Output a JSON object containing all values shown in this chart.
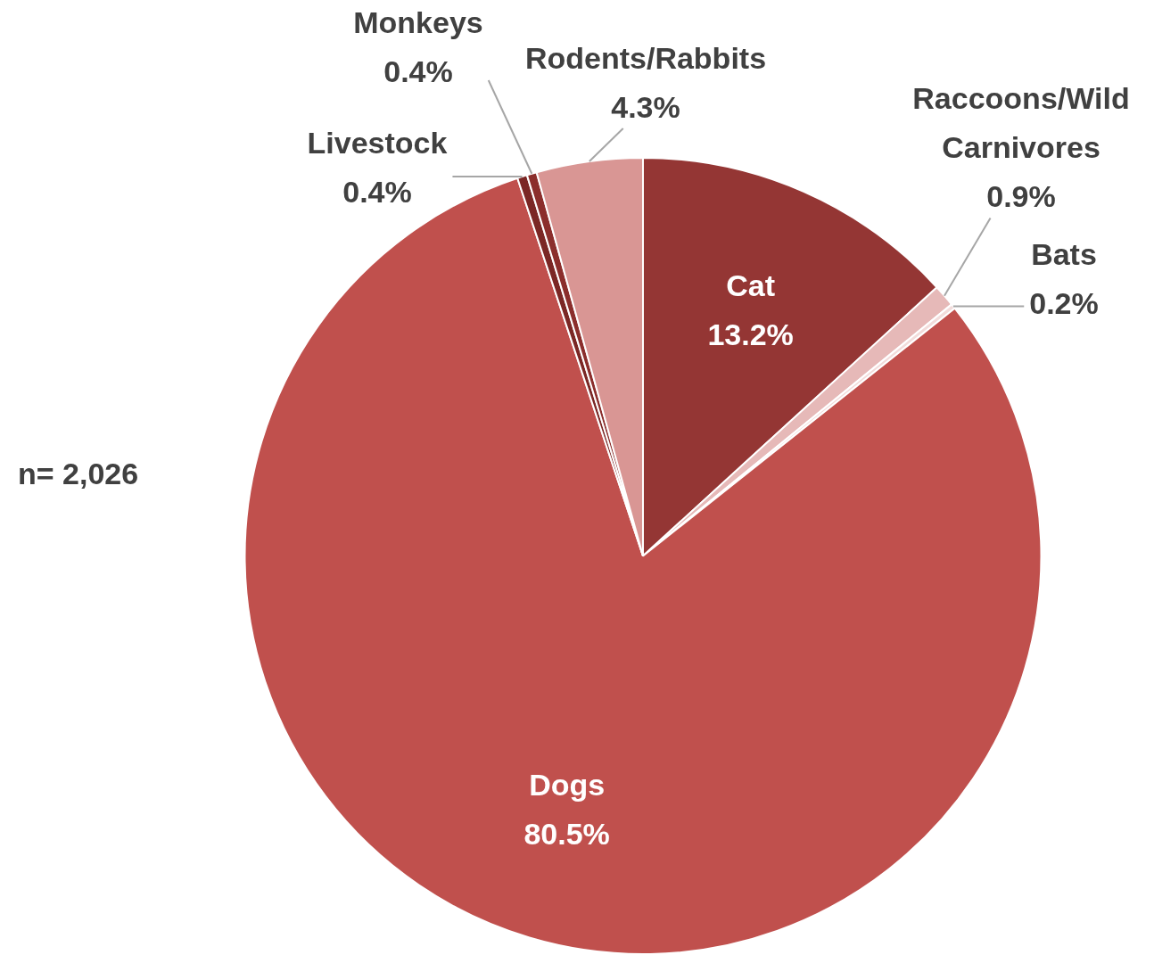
{
  "chart_data": {
    "type": "pie",
    "categories": [
      "Cat",
      "Raccoons/Wild Carnivores",
      "Bats",
      "Dogs",
      "Livestock",
      "Monkeys",
      "Rodents/Rabbits"
    ],
    "values": [
      13.2,
      0.9,
      0.2,
      80.5,
      0.4,
      0.4,
      4.3
    ],
    "value_labels": [
      "13.2%",
      "0.9%",
      "0.2%",
      "80.5%",
      "0.4%",
      "0.4%",
      "4.3%"
    ],
    "colors": [
      "#943634",
      "#e6b9b8",
      "#f2dcdb",
      "#c0504d",
      "#7b2725",
      "#8b2e2c",
      "#d99694"
    ],
    "legend": false,
    "annotations": [
      "n= 2,026"
    ]
  }
}
